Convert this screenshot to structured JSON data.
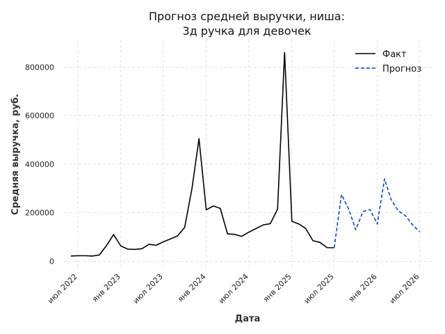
{
  "chart_data": {
    "type": "line",
    "title_lines": [
      "Прогноз средней выручки, ниша:",
      "3д ручка для девочек"
    ],
    "xlabel": "Дата",
    "ylabel": "Средняя выручка, руб.",
    "x_range": [
      "2022-05-03",
      "2026-08-25"
    ],
    "ylim": [
      -30000,
      910000
    ],
    "x_ticks": [
      {
        "date": "2022-07-01",
        "label": "июл 2022"
      },
      {
        "date": "2023-01-01",
        "label": "янв 2023"
      },
      {
        "date": "2023-07-01",
        "label": "июл 2023"
      },
      {
        "date": "2024-01-01",
        "label": "янв 2024"
      },
      {
        "date": "2024-07-01",
        "label": "июл 2024"
      },
      {
        "date": "2025-01-01",
        "label": "янв 2025"
      },
      {
        "date": "2025-07-01",
        "label": "июл 2025"
      },
      {
        "date": "2026-01-01",
        "label": "янв 2026"
      },
      {
        "date": "2026-07-01",
        "label": "июл 2026"
      }
    ],
    "y_ticks": [
      {
        "value": 0,
        "label": "0"
      },
      {
        "value": 200000,
        "label": "200000"
      },
      {
        "value": 400000,
        "label": "400000"
      },
      {
        "value": 600000,
        "label": "600000"
      },
      {
        "value": 800000,
        "label": "800000"
      }
    ],
    "grid": true,
    "legend_position": "top-right",
    "series": [
      {
        "name": "Факт",
        "color": "#000000",
        "dash": "solid",
        "x": [
          "2022-06-01",
          "2022-07-01",
          "2022-08-01",
          "2022-09-01",
          "2022-10-01",
          "2022-11-01",
          "2022-12-01",
          "2023-01-01",
          "2023-02-01",
          "2023-03-01",
          "2023-04-01",
          "2023-05-01",
          "2023-06-01",
          "2023-07-01",
          "2023-08-01",
          "2023-09-01",
          "2023-10-01",
          "2023-11-01",
          "2023-12-01",
          "2024-01-01",
          "2024-02-01",
          "2024-03-01",
          "2024-04-01",
          "2024-05-01",
          "2024-06-01",
          "2024-07-01",
          "2024-08-01",
          "2024-09-01",
          "2024-10-01",
          "2024-11-01",
          "2024-12-01",
          "2025-01-01",
          "2025-02-01",
          "2025-03-01",
          "2025-04-01",
          "2025-05-01",
          "2025-06-01",
          "2025-07-01"
        ],
        "y": [
          22000,
          23000,
          23000,
          22000,
          26000,
          65000,
          110000,
          63000,
          50000,
          49000,
          52000,
          70000,
          66000,
          80000,
          92000,
          105000,
          140000,
          300000,
          505000,
          212000,
          228000,
          218000,
          113000,
          111000,
          103000,
          120000,
          135000,
          150000,
          155000,
          215000,
          860000,
          165000,
          153000,
          135000,
          85000,
          78000,
          56000,
          56000
        ]
      },
      {
        "name": "Прогноз",
        "color": "#0047d6",
        "dash": "dashed",
        "x": [
          "2025-07-01",
          "2025-08-01",
          "2025-09-01",
          "2025-10-01",
          "2025-11-01",
          "2025-12-01",
          "2026-01-01",
          "2026-02-01",
          "2026-03-01",
          "2026-04-01",
          "2026-05-01",
          "2026-06-01",
          "2026-07-01"
        ],
        "y": [
          56000,
          275000,
          215000,
          130000,
          205000,
          213000,
          153000,
          340000,
          255000,
          208000,
          188000,
          150000,
          122000
        ]
      }
    ]
  }
}
